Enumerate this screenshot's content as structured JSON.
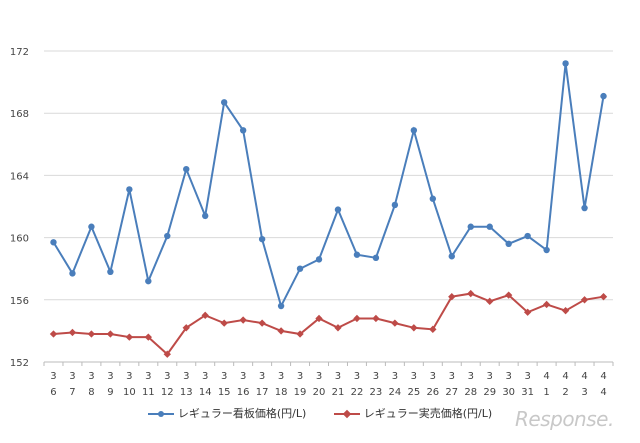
{
  "chart_data": {
    "type": "line",
    "ylim": [
      152,
      172
    ],
    "yticks": [
      152,
      156,
      160,
      164,
      168,
      172
    ],
    "grid": "horizontal",
    "legend_position": "bottom",
    "categories": [
      [
        "3",
        "6"
      ],
      [
        "3",
        "7"
      ],
      [
        "3",
        "8"
      ],
      [
        "3",
        "9"
      ],
      [
        "3",
        "10"
      ],
      [
        "3",
        "11"
      ],
      [
        "3",
        "12"
      ],
      [
        "3",
        "13"
      ],
      [
        "3",
        "14"
      ],
      [
        "3",
        "15"
      ],
      [
        "3",
        "16"
      ],
      [
        "3",
        "17"
      ],
      [
        "3",
        "18"
      ],
      [
        "3",
        "19"
      ],
      [
        "3",
        "20"
      ],
      [
        "3",
        "21"
      ],
      [
        "3",
        "22"
      ],
      [
        "3",
        "23"
      ],
      [
        "3",
        "24"
      ],
      [
        "3",
        "25"
      ],
      [
        "3",
        "26"
      ],
      [
        "3",
        "27"
      ],
      [
        "3",
        "28"
      ],
      [
        "3",
        "29"
      ],
      [
        "3",
        "30"
      ],
      [
        "3",
        "31"
      ],
      [
        "4",
        "1"
      ],
      [
        "4",
        "2"
      ],
      [
        "4",
        "3"
      ],
      [
        "4",
        "4"
      ]
    ],
    "series": [
      {
        "name": "レギュラー看板価格(円/L)",
        "color": "#4a7ebb",
        "values": [
          159.7,
          157.7,
          160.7,
          157.8,
          163.1,
          157.2,
          160.1,
          164.4,
          161.4,
          168.7,
          166.9,
          159.9,
          155.6,
          158.0,
          158.6,
          161.8,
          158.9,
          158.7,
          162.1,
          166.9,
          162.5,
          158.8,
          160.7,
          160.7,
          159.6,
          160.1,
          159.2,
          171.2,
          161.9,
          169.1
        ]
      },
      {
        "name": "レギュラー実売価格(円/L)",
        "color": "#be4b48",
        "values": [
          153.8,
          153.9,
          153.8,
          153.8,
          153.6,
          153.6,
          152.5,
          154.2,
          155.0,
          154.5,
          154.7,
          154.5,
          154.0,
          153.8,
          154.8,
          154.2,
          154.8,
          154.8,
          154.5,
          154.2,
          154.1,
          156.2,
          156.4,
          155.9,
          156.3,
          155.2,
          155.7,
          155.3,
          156.0,
          156.2
        ]
      }
    ]
  },
  "watermark": "Response."
}
